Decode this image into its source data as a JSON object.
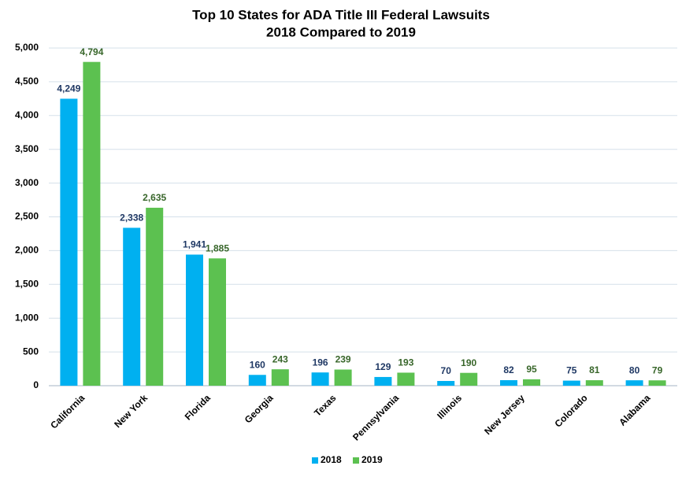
{
  "chart_data": {
    "type": "bar",
    "title": "Top 10 States for ADA Title III Federal Lawsuits",
    "subtitle": "2018 Compared to 2019",
    "categories": [
      "California",
      "New York",
      "Florida",
      "Georgia",
      "Texas",
      "Pennsylvania",
      "Illinois",
      "New Jersey",
      "Colorado",
      "Alabama"
    ],
    "series": [
      {
        "name": "2018",
        "color": "#00b0f0",
        "label_color": "#1f3864",
        "values": [
          4249,
          2338,
          1941,
          160,
          196,
          129,
          70,
          82,
          75,
          80
        ],
        "value_labels": [
          "4,249",
          "2,338",
          "1,941",
          "160",
          "196",
          "129",
          "70",
          "82",
          "75",
          "80"
        ]
      },
      {
        "name": "2019",
        "color": "#5cc150",
        "label_color": "#38662a",
        "values": [
          4794,
          2635,
          1885,
          243,
          239,
          193,
          190,
          95,
          81,
          79
        ],
        "value_labels": [
          "4,794",
          "2,635",
          "1,885",
          "243",
          "239",
          "193",
          "190",
          "95",
          "81",
          "79"
        ]
      }
    ],
    "ylim": [
      0,
      5000
    ],
    "yticks": [
      0,
      500,
      {
        "value": 1000,
        "label": "1,000"
      },
      {
        "value": 1500,
        "label": "1,500"
      },
      {
        "value": 2000,
        "label": "2,000"
      },
      {
        "value": 2500,
        "label": "2,500"
      },
      {
        "value": 3000,
        "label": "3,000"
      },
      {
        "value": 3500,
        "label": "3,500"
      },
      {
        "value": 4000,
        "label": "4,000"
      },
      {
        "value": 4500,
        "label": "4,500"
      },
      {
        "value": 5000,
        "label": "5,000"
      }
    ],
    "grid": true,
    "legend": "bottom"
  }
}
